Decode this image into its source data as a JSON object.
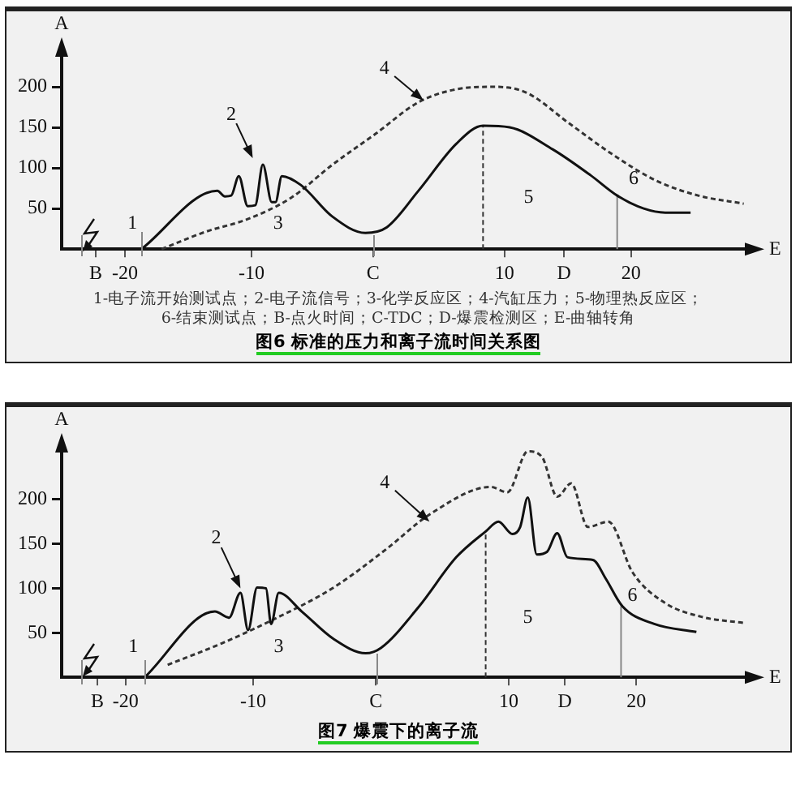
{
  "chart_data": [
    {
      "type": "line",
      "title": "图6 标准的压力和离子流时间关系图",
      "xlabel": "E",
      "ylabel": "A",
      "marker": "none",
      "xlim": [
        -25,
        29.5
      ],
      "ylim": [
        0,
        245
      ],
      "xticks": [
        {
          "value": -22.3,
          "label": "B"
        },
        -20,
        -10,
        {
          "value": -0.4,
          "label": "C"
        },
        10,
        {
          "value": 14.7,
          "label": "D"
        },
        20
      ],
      "yticks": [
        50,
        100,
        150,
        200
      ],
      "annotations": [
        "1",
        "2",
        "3",
        "4",
        "5",
        "6",
        "1-电子流开始测试点；2-电子流信号；3-化学反应区；4-汽缸压力；5-物理热反应区；",
        "6-结束测试点；B-点火时间；C-TDC；D-爆震检测区；E-曲轴转角"
      ],
      "series": [
        {
          "color": "#111111",
          "line_style": "solid",
          "x": [
            -18.7,
            -12.7,
            -12.1,
            -11.6,
            -11.0,
            -10.3,
            -9.7,
            -9.1,
            -8.4,
            -8.1,
            -7.6,
            -6.1,
            -3.6,
            -1.0,
            0.7,
            3.2,
            6.2,
            8.3,
            10.4,
            13.8,
            16.8,
            18.9,
            21.0,
            22.7,
            24.7
          ],
          "values": [
            0,
            72,
            65,
            66,
            90,
            53,
            54,
            104,
            58,
            58,
            90,
            79,
            40,
            20,
            27,
            72,
            130,
            152,
            150,
            123,
            91,
            66,
            50,
            45,
            45
          ]
        },
        {
          "color": "#333333",
          "line_style": "dashed",
          "x": [
            -17.1,
            -13.7,
            -10.3,
            -6.9,
            -3.6,
            -0.2,
            3.2,
            6.2,
            9.2,
            11.7,
            15.1,
            18.5,
            21.9,
            25.3,
            28.9
          ],
          "values": [
            0,
            21,
            37,
            63,
            104,
            142,
            181,
            197,
            200,
            193,
            155,
            117,
            85,
            66,
            56
          ]
        },
        {
          "color": "#333333",
          "line_style": "dashed",
          "x": [
            8.3,
            8.3
          ],
          "values": [
            0,
            152
          ]
        },
        {
          "color": "#888888",
          "line_style": "solid",
          "x": [
            18.9,
            18.9
          ],
          "values": [
            0,
            66
          ]
        }
      ]
    },
    {
      "type": "line",
      "title": "图7 爆震下的离子流",
      "xlabel": "E",
      "ylabel": "A",
      "marker": "none",
      "xlim": [
        -25,
        29
      ],
      "ylim": [
        0,
        260
      ],
      "xticks": [
        {
          "value": -22.2,
          "label": "B"
        },
        -20,
        -10,
        {
          "value": -0.4,
          "label": "C"
        },
        10,
        {
          "value": 14.4,
          "label": "D"
        },
        20
      ],
      "yticks": [
        50,
        100,
        150,
        200
      ],
      "annotations": [
        "1",
        "2",
        "3",
        "4",
        "5",
        "6"
      ],
      "series": [
        {
          "color": "#111111",
          "line_style": "solid",
          "x": [
            -18.5,
            -13.0,
            -11.9,
            -11.0,
            -10.4,
            -9.7,
            -9.0,
            -8.6,
            -8.0,
            -6.2,
            -3.7,
            -1.2,
            0.0,
            3.0,
            5.9,
            8.2,
            9.2,
            10.3,
            10.9,
            11.5,
            12.2,
            13.0,
            13.8,
            14.6,
            16.6,
            17.6,
            18.9,
            21.4,
            24.7
          ],
          "values": [
            0,
            74,
            67,
            95,
            53,
            101,
            100,
            60,
            95,
            74,
            43,
            27,
            33,
            80,
            135,
            164,
            175,
            161,
            169,
            202,
            138,
            141,
            162,
            135,
            132,
            111,
            80,
            60,
            51
          ]
        },
        {
          "color": "#333333",
          "line_style": "dashed",
          "x": [
            -16.7,
            -12.5,
            -8.7,
            -3.7,
            0.5,
            3.8,
            8.6,
            9.9,
            11.5,
            12.6,
            13.8,
            14.9,
            16.2,
            17.8,
            19.7,
            22.2,
            25.1,
            28.5
          ],
          "values": [
            14,
            38,
            63,
            101,
            145,
            183,
            214,
            208,
            254,
            248,
            203,
            218,
            169,
            175,
            118,
            84,
            68,
            61
          ]
        },
        {
          "color": "#333333",
          "line_style": "dashed",
          "x": [
            8.2,
            8.2
          ],
          "values": [
            0,
            164
          ]
        },
        {
          "color": "#888888",
          "line_style": "solid",
          "x": [
            18.8,
            18.8
          ],
          "values": [
            0,
            80
          ]
        }
      ]
    }
  ]
}
